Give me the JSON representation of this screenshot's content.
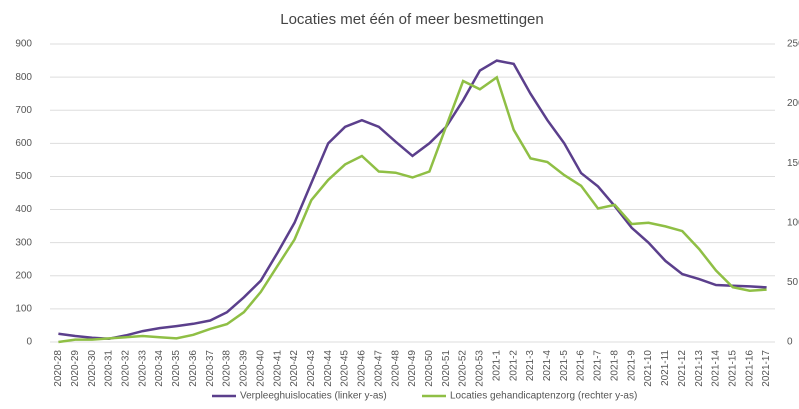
{
  "chart_data": {
    "type": "line",
    "title": "Locaties met één of meer besmettingen",
    "categories": [
      "2020-28",
      "2020-29",
      "2020-30",
      "2020-31",
      "2020-32",
      "2020-33",
      "2020-34",
      "2020-35",
      "2020-36",
      "2020-37",
      "2020-38",
      "2020-39",
      "2020-40",
      "2020-41",
      "2020-42",
      "2020-43",
      "2020-44",
      "2020-45",
      "2020-46",
      "2020-47",
      "2020-48",
      "2020-49",
      "2020-50",
      "2020-51",
      "2020-52",
      "2020-53",
      "2021-1",
      "2021-2",
      "2021-3",
      "2021-4",
      "2021-5",
      "2021-6",
      "2021-7",
      "2021-8",
      "2021-9",
      "2021-10",
      "2021-11",
      "2021-12",
      "2021-13",
      "2021-14",
      "2021-15",
      "2021-16",
      "2021-17"
    ],
    "series": [
      {
        "name": "Verpleeghuislocaties (linker y-as)",
        "color": "#5b3f8c",
        "axis": "y",
        "values": [
          25,
          18,
          13,
          10,
          20,
          33,
          42,
          48,
          55,
          65,
          90,
          135,
          185,
          270,
          360,
          480,
          600,
          650,
          670,
          650,
          605,
          562,
          600,
          650,
          730,
          820,
          850,
          840,
          750,
          670,
          600,
          510,
          470,
          410,
          345,
          300,
          245,
          205,
          190,
          172,
          170,
          168,
          165
        ]
      },
      {
        "name": "Locaties gehandicaptenzorg (rechter y-as)",
        "color": "#8fbf45",
        "axis": "y2",
        "values": [
          0,
          2,
          2,
          3,
          4,
          5,
          4,
          3,
          6,
          11,
          15,
          25,
          42,
          64,
          86,
          119,
          136,
          149,
          156,
          143,
          142,
          138,
          143,
          181,
          219,
          212,
          222,
          178,
          154,
          151,
          140,
          131,
          112,
          115,
          99,
          100,
          97,
          93,
          78,
          60,
          46,
          43,
          44
        ]
      }
    ],
    "ylim": [
      0,
      900
    ],
    "yticks": [
      0,
      100,
      200,
      300,
      400,
      500,
      600,
      700,
      800,
      900
    ],
    "y2lim": [
      0,
      250
    ],
    "y2ticks": [
      0,
      50,
      100,
      150,
      200,
      250
    ],
    "grid": true
  }
}
